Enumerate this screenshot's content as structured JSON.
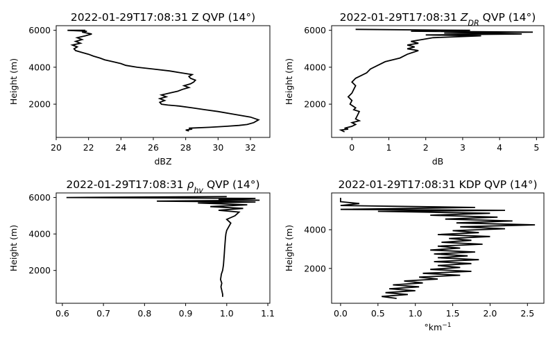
{
  "chart_data": [
    {
      "type": "line",
      "title": "2022-01-29T17:08:31 Z QVP (14°)",
      "title_parts": [
        {
          "t": "2022-01-29T17:08:31 Z QVP (14°)"
        }
      ],
      "xlabel": "dBZ",
      "xlabel_parts": [
        {
          "t": "dBZ"
        }
      ],
      "ylabel": "Height (m)",
      "xlim": [
        20.0,
        33.2
      ],
      "ylim": [
        200,
        6250
      ],
      "xticks": [
        20,
        22,
        24,
        26,
        28,
        30,
        32
      ],
      "yticks": [
        2000,
        4000,
        6000
      ],
      "grid": false,
      "series": [
        {
          "color": "#000000",
          "points": [
            [
              28.2,
              550
            ],
            [
              28.0,
              600
            ],
            [
              28.4,
              650
            ],
            [
              28.2,
              700
            ],
            [
              29.5,
              750
            ],
            [
              30.5,
              800
            ],
            [
              31.3,
              850
            ],
            [
              31.8,
              900
            ],
            [
              32.2,
              1000
            ],
            [
              32.5,
              1150
            ],
            [
              32.0,
              1300
            ],
            [
              31.0,
              1450
            ],
            [
              30.0,
              1600
            ],
            [
              29.2,
              1700
            ],
            [
              28.4,
              1800
            ],
            [
              27.6,
              1900
            ],
            [
              26.9,
              1950
            ],
            [
              26.5,
              2000
            ],
            [
              26.4,
              2100
            ],
            [
              26.7,
              2200
            ],
            [
              26.4,
              2300
            ],
            [
              26.8,
              2400
            ],
            [
              26.5,
              2500
            ],
            [
              27.0,
              2600
            ],
            [
              27.5,
              2700
            ],
            [
              27.8,
              2800
            ],
            [
              28.2,
              2900
            ],
            [
              27.9,
              3000
            ],
            [
              28.3,
              3100
            ],
            [
              28.5,
              3200
            ],
            [
              28.6,
              3300
            ],
            [
              28.3,
              3400
            ],
            [
              28.2,
              3500
            ],
            [
              28.4,
              3600
            ],
            [
              27.7,
              3700
            ],
            [
              27.0,
              3800
            ],
            [
              26.0,
              3900
            ],
            [
              25.0,
              4000
            ],
            [
              24.3,
              4100
            ],
            [
              24.0,
              4200
            ],
            [
              23.5,
              4300
            ],
            [
              23.0,
              4400
            ],
            [
              22.7,
              4500
            ],
            [
              22.3,
              4600
            ],
            [
              22.0,
              4700
            ],
            [
              21.6,
              4800
            ],
            [
              21.2,
              4900
            ],
            [
              21.1,
              5000
            ],
            [
              21.3,
              5100
            ],
            [
              21.0,
              5200
            ],
            [
              21.5,
              5300
            ],
            [
              21.2,
              5400
            ],
            [
              21.6,
              5500
            ],
            [
              21.3,
              5600
            ],
            [
              21.8,
              5700
            ],
            [
              22.2,
              5800
            ],
            [
              21.6,
              5900
            ],
            [
              21.9,
              5950
            ],
            [
              20.7,
              6000
            ],
            [
              21.8,
              6000
            ]
          ]
        }
      ]
    },
    {
      "type": "line",
      "title": "2022-01-29T17:08:31 ZDR QVP (14°)",
      "title_parts": [
        {
          "t": "2022-01-29T17:08:31 "
        },
        {
          "t": "Z",
          "i": true
        },
        {
          "t": "DR",
          "i": true,
          "sub": true
        },
        {
          "t": " QVP (14°)"
        }
      ],
      "xlabel": "dB",
      "xlabel_parts": [
        {
          "t": "dB"
        }
      ],
      "ylabel": "Height (m)",
      "xlim": [
        -0.55,
        5.2
      ],
      "ylim": [
        200,
        6250
      ],
      "xticks": [
        0,
        1,
        2,
        3,
        4,
        5
      ],
      "yticks": [
        2000,
        4000,
        6000
      ],
      "grid": false,
      "series": [
        {
          "color": "#000000",
          "points": [
            [
              -0.2,
              500
            ],
            [
              -0.3,
              600
            ],
            [
              -0.1,
              650
            ],
            [
              -0.2,
              700
            ],
            [
              0.0,
              800
            ],
            [
              0.1,
              900
            ],
            [
              0.0,
              1000
            ],
            [
              0.2,
              1100
            ],
            [
              0.1,
              1200
            ],
            [
              0.15,
              1400
            ],
            [
              0.2,
              1600
            ],
            [
              0.05,
              1700
            ],
            [
              0.1,
              1800
            ],
            [
              -0.05,
              2000
            ],
            [
              0.0,
              2200
            ],
            [
              -0.1,
              2400
            ],
            [
              0.0,
              2600
            ],
            [
              0.05,
              2800
            ],
            [
              0.1,
              3000
            ],
            [
              0.0,
              3200
            ],
            [
              0.1,
              3400
            ],
            [
              0.2,
              3500
            ],
            [
              0.4,
              3700
            ],
            [
              0.5,
              3900
            ],
            [
              0.7,
              4100
            ],
            [
              0.9,
              4300
            ],
            [
              1.1,
              4400
            ],
            [
              1.3,
              4500
            ],
            [
              1.5,
              4700
            ],
            [
              1.8,
              4900
            ],
            [
              1.5,
              5000
            ],
            [
              1.7,
              5100
            ],
            [
              1.5,
              5200
            ],
            [
              1.8,
              5300
            ],
            [
              1.6,
              5400
            ],
            [
              1.9,
              5500
            ],
            [
              2.2,
              5600
            ],
            [
              3.5,
              5700
            ],
            [
              2.0,
              5750
            ],
            [
              4.6,
              5800
            ],
            [
              2.5,
              5850
            ],
            [
              4.9,
              5900
            ],
            [
              1.6,
              5950
            ],
            [
              3.2,
              6000
            ],
            [
              0.1,
              6050
            ]
          ]
        }
      ]
    },
    {
      "type": "line",
      "title": "2022-01-29T17:08:31 ρhv QVP (14°)",
      "title_parts": [
        {
          "t": "2022-01-29T17:08:31 "
        },
        {
          "t": "ρ",
          "i": true
        },
        {
          "t": "hv",
          "i": true,
          "sub": true
        },
        {
          "t": " QVP (14°)"
        }
      ],
      "xlabel": "",
      "xlabel_parts": [],
      "ylabel": "Height (m)",
      "xlim": [
        0.585,
        1.105
      ],
      "ylim": [
        200,
        6250
      ],
      "xticks": [
        0.6,
        0.7,
        0.8,
        0.9,
        1.0,
        1.1
      ],
      "yticks": [
        2000,
        4000,
        6000
      ],
      "grid": false,
      "series": [
        {
          "color": "#000000",
          "points": [
            [
              0.99,
              550
            ],
            [
              0.99,
              700
            ],
            [
              0.988,
              900
            ],
            [
              0.986,
              1100
            ],
            [
              0.988,
              1300
            ],
            [
              0.985,
              1500
            ],
            [
              0.987,
              1800
            ],
            [
              0.99,
              2000
            ],
            [
              0.992,
              2300
            ],
            [
              0.993,
              2600
            ],
            [
              0.994,
              2900
            ],
            [
              0.995,
              3200
            ],
            [
              0.996,
              3500
            ],
            [
              0.997,
              3800
            ],
            [
              0.998,
              4000
            ],
            [
              1.0,
              4200
            ],
            [
              1.005,
              4400
            ],
            [
              1.01,
              4600
            ],
            [
              1.0,
              4800
            ],
            [
              1.02,
              5000
            ],
            [
              1.03,
              5200
            ],
            [
              0.98,
              5300
            ],
            [
              1.04,
              5400
            ],
            [
              0.96,
              5500
            ],
            [
              1.05,
              5600
            ],
            [
              0.93,
              5700
            ],
            [
              1.07,
              5750
            ],
            [
              0.83,
              5800
            ],
            [
              1.08,
              5850
            ],
            [
              0.98,
              5900
            ],
            [
              1.07,
              5950
            ],
            [
              0.61,
              6000
            ],
            [
              1.0,
              6050
            ]
          ]
        }
      ]
    },
    {
      "type": "line",
      "title": "2022-01-29T17:08:31 KDP QVP (14°)",
      "title_parts": [
        {
          "t": "2022-01-29T17:08:31 KDP QVP (14°)"
        }
      ],
      "xlabel": "°km−1",
      "xlabel_parts": [
        {
          "t": "°km"
        },
        {
          "t": "−1",
          "sup": true
        }
      ],
      "ylabel": "Height (m)",
      "xlim": [
        -0.12,
        2.72
      ],
      "ylim": [
        200,
        5900
      ],
      "xticks": [
        0.0,
        0.5,
        1.0,
        1.5,
        2.0,
        2.5
      ],
      "yticks": [
        2000,
        4000
      ],
      "grid": false,
      "series": [
        {
          "color": "#000000",
          "points": [
            [
              0.75,
              450
            ],
            [
              0.55,
              550
            ],
            [
              0.9,
              650
            ],
            [
              0.6,
              750
            ],
            [
              1.0,
              850
            ],
            [
              0.65,
              950
            ],
            [
              1.05,
              1050
            ],
            [
              0.7,
              1150
            ],
            [
              1.1,
              1250
            ],
            [
              0.85,
              1350
            ],
            [
              1.3,
              1450
            ],
            [
              1.05,
              1550
            ],
            [
              1.6,
              1650
            ],
            [
              1.1,
              1750
            ],
            [
              1.75,
              1850
            ],
            [
              1.2,
              1950
            ],
            [
              1.6,
              2050
            ],
            [
              1.3,
              2150
            ],
            [
              1.75,
              2250
            ],
            [
              1.25,
              2350
            ],
            [
              1.85,
              2450
            ],
            [
              1.3,
              2550
            ],
            [
              1.7,
              2650
            ],
            [
              1.25,
              2750
            ],
            [
              1.8,
              2850
            ],
            [
              1.2,
              2950
            ],
            [
              1.6,
              3050
            ],
            [
              1.3,
              3150
            ],
            [
              1.9,
              3250
            ],
            [
              1.35,
              3350
            ],
            [
              1.75,
              3450
            ],
            [
              1.45,
              3550
            ],
            [
              2.0,
              3650
            ],
            [
              1.3,
              3750
            ],
            [
              1.85,
              3850
            ],
            [
              1.5,
              3950
            ],
            [
              2.2,
              4050
            ],
            [
              1.6,
              4150
            ],
            [
              2.6,
              4250
            ],
            [
              1.55,
              4350
            ],
            [
              2.3,
              4450
            ],
            [
              1.4,
              4550
            ],
            [
              2.1,
              4650
            ],
            [
              1.2,
              4750
            ],
            [
              2.0,
              4850
            ],
            [
              0.5,
              4950
            ],
            [
              2.2,
              5000
            ],
            [
              0.0,
              5050
            ],
            [
              1.8,
              5150
            ],
            [
              0.0,
              5250
            ],
            [
              0.25,
              5350
            ],
            [
              0.0,
              5450
            ],
            [
              0.0,
              5650
            ]
          ]
        }
      ]
    }
  ]
}
